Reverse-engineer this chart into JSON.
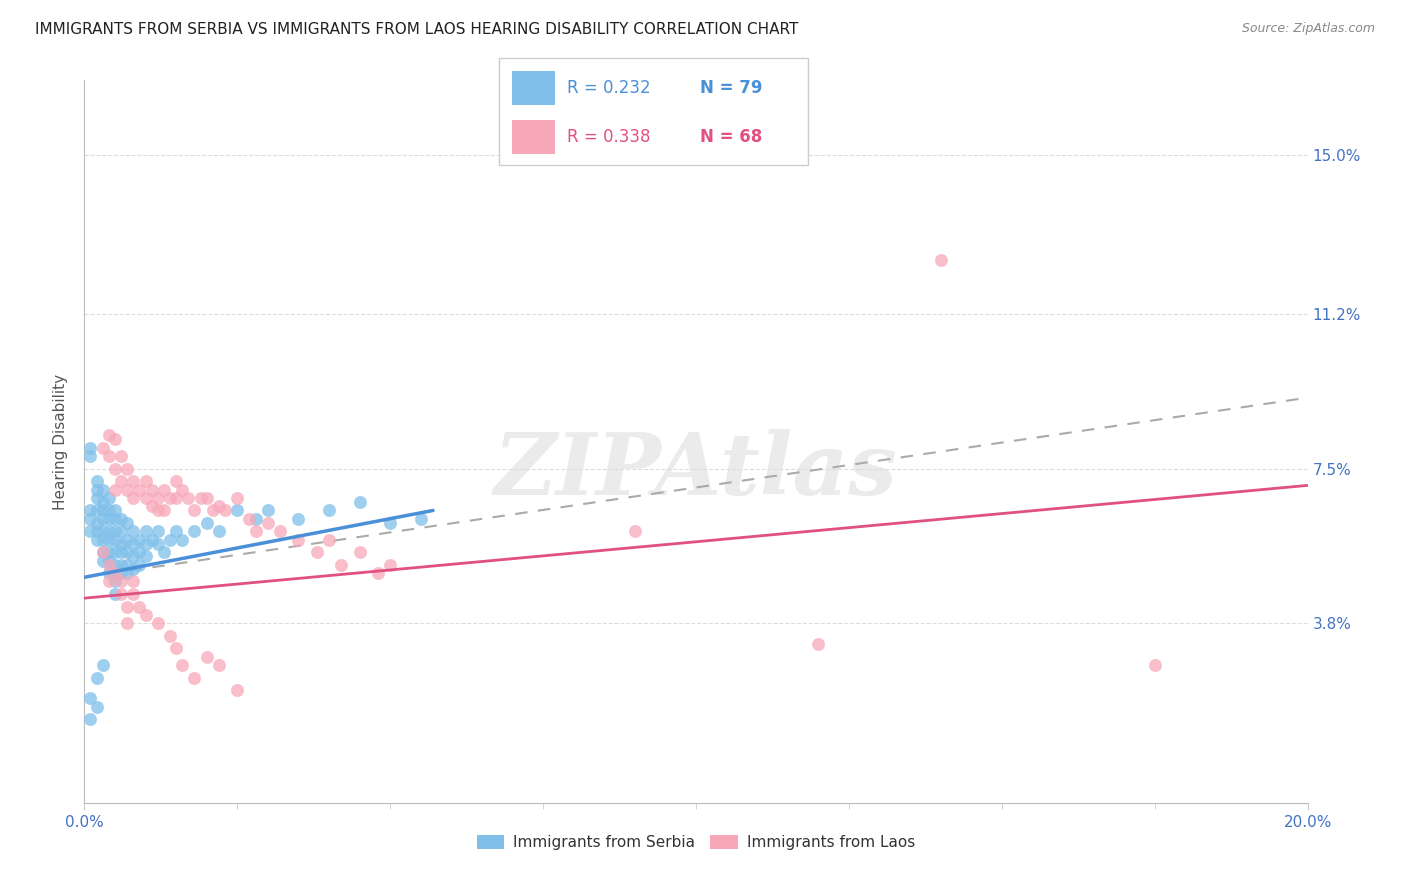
{
  "title": "IMMIGRANTS FROM SERBIA VS IMMIGRANTS FROM LAOS HEARING DISABILITY CORRELATION CHART",
  "source": "Source: ZipAtlas.com",
  "ylabel": "Hearing Disability",
  "ytick_labels": [
    "15.0%",
    "11.2%",
    "7.5%",
    "3.8%"
  ],
  "ytick_values": [
    0.15,
    0.112,
    0.075,
    0.038
  ],
  "xlim": [
    0.0,
    0.2
  ],
  "ylim": [
    -0.005,
    0.168
  ],
  "serbia_color": "#7fbfea",
  "laos_color": "#f7a8b8",
  "serbia_label": "Immigrants from Serbia",
  "laos_label": "Immigrants from Laos",
  "serbia_line_color": "#4a90d9",
  "laos_line_color": "#e05080",
  "dashed_line_color": "#aaaaaa",
  "serbia_line_x": [
    0.0,
    0.057
  ],
  "serbia_line_y": [
    0.049,
    0.065
  ],
  "laos_line_x": [
    0.0,
    0.2
  ],
  "laos_line_y": [
    0.044,
    0.071
  ],
  "dashed_line_x": [
    0.0,
    0.2
  ],
  "dashed_line_y": [
    0.049,
    0.092
  ],
  "serbia_points": [
    [
      0.001,
      0.08
    ],
    [
      0.001,
      0.078
    ],
    [
      0.001,
      0.065
    ],
    [
      0.001,
      0.063
    ],
    [
      0.001,
      0.06
    ],
    [
      0.002,
      0.072
    ],
    [
      0.002,
      0.07
    ],
    [
      0.002,
      0.068
    ],
    [
      0.002,
      0.065
    ],
    [
      0.002,
      0.062
    ],
    [
      0.002,
      0.06
    ],
    [
      0.002,
      0.058
    ],
    [
      0.003,
      0.07
    ],
    [
      0.003,
      0.067
    ],
    [
      0.003,
      0.065
    ],
    [
      0.003,
      0.063
    ],
    [
      0.003,
      0.06
    ],
    [
      0.003,
      0.058
    ],
    [
      0.003,
      0.055
    ],
    [
      0.003,
      0.053
    ],
    [
      0.004,
      0.068
    ],
    [
      0.004,
      0.065
    ],
    [
      0.004,
      0.063
    ],
    [
      0.004,
      0.06
    ],
    [
      0.004,
      0.058
    ],
    [
      0.004,
      0.055
    ],
    [
      0.004,
      0.053
    ],
    [
      0.004,
      0.05
    ],
    [
      0.005,
      0.065
    ],
    [
      0.005,
      0.063
    ],
    [
      0.005,
      0.06
    ],
    [
      0.005,
      0.058
    ],
    [
      0.005,
      0.055
    ],
    [
      0.005,
      0.052
    ],
    [
      0.005,
      0.05
    ],
    [
      0.005,
      0.048
    ],
    [
      0.005,
      0.045
    ],
    [
      0.006,
      0.063
    ],
    [
      0.006,
      0.06
    ],
    [
      0.006,
      0.057
    ],
    [
      0.006,
      0.055
    ],
    [
      0.006,
      0.052
    ],
    [
      0.006,
      0.05
    ],
    [
      0.007,
      0.062
    ],
    [
      0.007,
      0.058
    ],
    [
      0.007,
      0.055
    ],
    [
      0.007,
      0.052
    ],
    [
      0.007,
      0.05
    ],
    [
      0.008,
      0.06
    ],
    [
      0.008,
      0.057
    ],
    [
      0.008,
      0.054
    ],
    [
      0.008,
      0.051
    ],
    [
      0.009,
      0.058
    ],
    [
      0.009,
      0.055
    ],
    [
      0.009,
      0.052
    ],
    [
      0.01,
      0.06
    ],
    [
      0.01,
      0.057
    ],
    [
      0.01,
      0.054
    ],
    [
      0.011,
      0.058
    ],
    [
      0.012,
      0.06
    ],
    [
      0.012,
      0.057
    ],
    [
      0.013,
      0.055
    ],
    [
      0.014,
      0.058
    ],
    [
      0.015,
      0.06
    ],
    [
      0.016,
      0.058
    ],
    [
      0.018,
      0.06
    ],
    [
      0.02,
      0.062
    ],
    [
      0.022,
      0.06
    ],
    [
      0.025,
      0.065
    ],
    [
      0.028,
      0.063
    ],
    [
      0.03,
      0.065
    ],
    [
      0.035,
      0.063
    ],
    [
      0.04,
      0.065
    ],
    [
      0.045,
      0.067
    ],
    [
      0.05,
      0.062
    ],
    [
      0.055,
      0.063
    ],
    [
      0.001,
      0.02
    ],
    [
      0.001,
      0.015
    ],
    [
      0.002,
      0.025
    ],
    [
      0.002,
      0.018
    ],
    [
      0.003,
      0.028
    ]
  ],
  "laos_points": [
    [
      0.003,
      0.08
    ],
    [
      0.004,
      0.083
    ],
    [
      0.004,
      0.078
    ],
    [
      0.005,
      0.082
    ],
    [
      0.005,
      0.075
    ],
    [
      0.005,
      0.07
    ],
    [
      0.006,
      0.078
    ],
    [
      0.006,
      0.072
    ],
    [
      0.007,
      0.075
    ],
    [
      0.007,
      0.07
    ],
    [
      0.008,
      0.072
    ],
    [
      0.008,
      0.068
    ],
    [
      0.009,
      0.07
    ],
    [
      0.01,
      0.072
    ],
    [
      0.01,
      0.068
    ],
    [
      0.011,
      0.07
    ],
    [
      0.011,
      0.066
    ],
    [
      0.012,
      0.068
    ],
    [
      0.012,
      0.065
    ],
    [
      0.013,
      0.07
    ],
    [
      0.013,
      0.065
    ],
    [
      0.014,
      0.068
    ],
    [
      0.015,
      0.072
    ],
    [
      0.015,
      0.068
    ],
    [
      0.016,
      0.07
    ],
    [
      0.017,
      0.068
    ],
    [
      0.018,
      0.065
    ],
    [
      0.019,
      0.068
    ],
    [
      0.02,
      0.068
    ],
    [
      0.021,
      0.065
    ],
    [
      0.022,
      0.066
    ],
    [
      0.023,
      0.065
    ],
    [
      0.025,
      0.068
    ],
    [
      0.027,
      0.063
    ],
    [
      0.028,
      0.06
    ],
    [
      0.03,
      0.062
    ],
    [
      0.032,
      0.06
    ],
    [
      0.035,
      0.058
    ],
    [
      0.038,
      0.055
    ],
    [
      0.04,
      0.058
    ],
    [
      0.042,
      0.052
    ],
    [
      0.045,
      0.055
    ],
    [
      0.048,
      0.05
    ],
    [
      0.05,
      0.052
    ],
    [
      0.003,
      0.055
    ],
    [
      0.004,
      0.052
    ],
    [
      0.004,
      0.048
    ],
    [
      0.005,
      0.05
    ],
    [
      0.006,
      0.048
    ],
    [
      0.006,
      0.045
    ],
    [
      0.007,
      0.042
    ],
    [
      0.007,
      0.038
    ],
    [
      0.008,
      0.048
    ],
    [
      0.008,
      0.045
    ],
    [
      0.009,
      0.042
    ],
    [
      0.01,
      0.04
    ],
    [
      0.012,
      0.038
    ],
    [
      0.014,
      0.035
    ],
    [
      0.015,
      0.032
    ],
    [
      0.016,
      0.028
    ],
    [
      0.018,
      0.025
    ],
    [
      0.02,
      0.03
    ],
    [
      0.022,
      0.028
    ],
    [
      0.025,
      0.022
    ],
    [
      0.14,
      0.125
    ],
    [
      0.175,
      0.028
    ],
    [
      0.12,
      0.033
    ],
    [
      0.09,
      0.06
    ]
  ],
  "watermark_text": "ZIPAtlas",
  "grid_color": "#dddddd",
  "xtick_minor_count": 8
}
